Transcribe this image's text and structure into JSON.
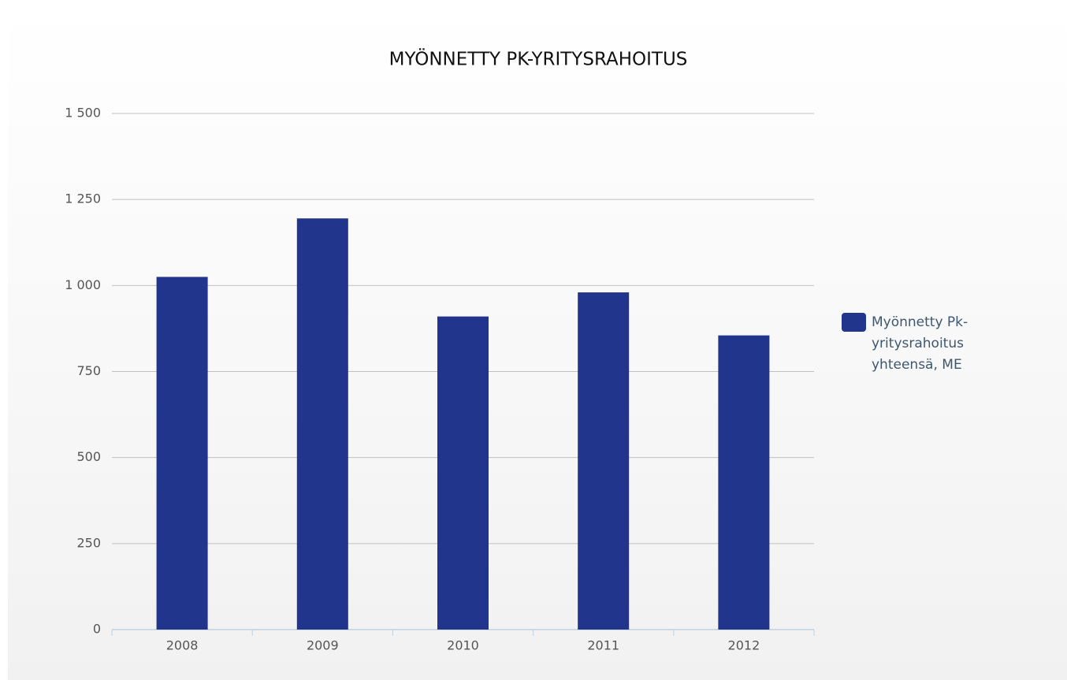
{
  "chart_data": {
    "type": "bar",
    "title": "MYÖNNETTY PK-YRITYSRAHOITUS",
    "categories": [
      "2008",
      "2009",
      "2010",
      "2011",
      "2012"
    ],
    "series": [
      {
        "name": "Myönnetty Pk-yritysrahoitus yhteensä, ME",
        "color": "#22358c",
        "values": [
          1025,
          1195,
          910,
          980,
          855
        ]
      }
    ],
    "ylim": [
      0,
      1500
    ],
    "yticks": [
      0,
      250,
      500,
      750,
      {
        "value": 1000,
        "label": "1 000"
      },
      {
        "value": 1250,
        "label": "1 250"
      },
      {
        "value": 1500,
        "label": "1 500"
      }
    ],
    "grid": true,
    "legend": "right"
  }
}
